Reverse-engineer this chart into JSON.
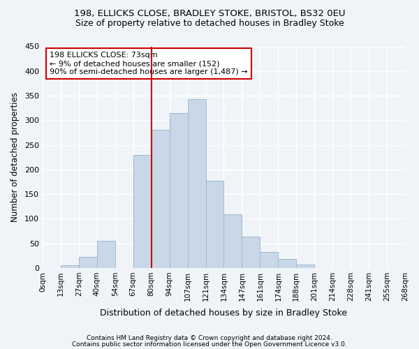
{
  "title1": "198, ELLICKS CLOSE, BRADLEY STOKE, BRISTOL, BS32 0EU",
  "title2": "Size of property relative to detached houses in Bradley Stoke",
  "xlabel": "Distribution of detached houses by size in Bradley Stoke",
  "ylabel": "Number of detached properties",
  "bin_labels": [
    "0sqm",
    "13sqm",
    "27sqm",
    "40sqm",
    "54sqm",
    "67sqm",
    "80sqm",
    "94sqm",
    "107sqm",
    "121sqm",
    "134sqm",
    "147sqm",
    "161sqm",
    "174sqm",
    "188sqm",
    "201sqm",
    "214sqm",
    "228sqm",
    "241sqm",
    "255sqm",
    "268sqm"
  ],
  "bar_values": [
    0,
    6,
    22,
    55,
    0,
    230,
    280,
    315,
    343,
    177,
    109,
    64,
    33,
    19,
    7,
    0,
    0,
    0,
    0,
    0
  ],
  "bar_color": "#c8d8e8",
  "bar_edge_color": "#a0b8cc",
  "vline_color": "#cc0000",
  "annotation_text": "198 ELLICKS CLOSE: 73sqm\n← 9% of detached houses are smaller (152)\n90% of semi-detached houses are larger (1,487) →",
  "annotation_box_edgecolor": "#cc0000",
  "ylim": [
    0,
    450
  ],
  "yticks": [
    0,
    50,
    100,
    150,
    200,
    250,
    300,
    350,
    400,
    450
  ],
  "footer1": "Contains HM Land Registry data © Crown copyright and database right 2024.",
  "footer2": "Contains public sector information licensed under the Open Government Licence v3.0.",
  "background_color": "#f0f4f8",
  "grid_color": "#ffffff"
}
